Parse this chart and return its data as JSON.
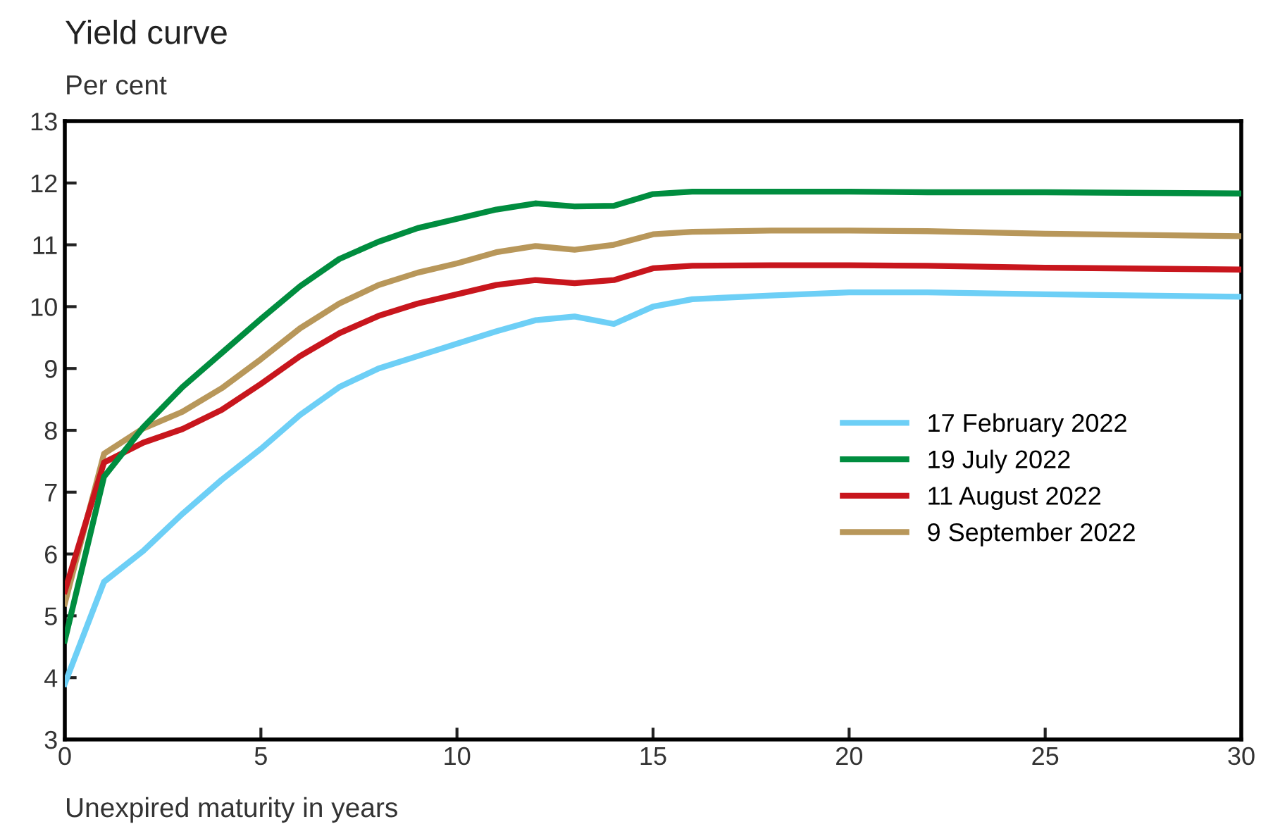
{
  "chart_data": {
    "type": "line",
    "title": "Yield curve",
    "ylabel": "Per cent",
    "xlabel": "Unexpired maturity in years",
    "x": [
      0,
      1,
      2,
      3,
      4,
      5,
      6,
      7,
      8,
      9,
      10,
      11,
      12,
      13,
      14,
      15,
      16,
      18,
      20,
      22,
      25,
      30
    ],
    "series": [
      {
        "name": "17 February 2022",
        "color": "#6dcff6",
        "values": [
          3.9,
          5.55,
          6.05,
          6.65,
          7.2,
          7.7,
          8.25,
          8.7,
          9.0,
          9.2,
          9.4,
          9.6,
          9.78,
          9.84,
          9.72,
          10.0,
          10.12,
          10.18,
          10.23,
          10.23,
          10.2,
          10.16
        ]
      },
      {
        "name": "19 July 2022",
        "color": "#008d3f",
        "values": [
          4.6,
          7.25,
          8.05,
          8.7,
          9.25,
          9.8,
          10.33,
          10.77,
          11.05,
          11.27,
          11.42,
          11.57,
          11.67,
          11.62,
          11.63,
          11.82,
          11.86,
          11.86,
          11.86,
          11.85,
          11.85,
          11.83
        ]
      },
      {
        "name": "11 August 2022",
        "color": "#c8161d",
        "values": [
          5.4,
          7.48,
          7.8,
          8.02,
          8.33,
          8.75,
          9.2,
          9.57,
          9.85,
          10.05,
          10.2,
          10.35,
          10.43,
          10.38,
          10.43,
          10.62,
          10.66,
          10.67,
          10.67,
          10.66,
          10.63,
          10.6
        ]
      },
      {
        "name": "9 September 2022",
        "color": "#b8975a",
        "values": [
          5.2,
          7.62,
          8.03,
          8.3,
          8.68,
          9.15,
          9.65,
          10.05,
          10.35,
          10.55,
          10.7,
          10.88,
          10.98,
          10.92,
          11.0,
          11.17,
          11.21,
          11.23,
          11.23,
          11.22,
          11.18,
          11.14
        ]
      }
    ],
    "xlim": [
      0,
      30
    ],
    "xticks": [
      0,
      5,
      10,
      15,
      20,
      25,
      30
    ],
    "ylim": [
      3,
      13
    ],
    "yticks": [
      3,
      4,
      5,
      6,
      7,
      8,
      9,
      10,
      11,
      12,
      13
    ],
    "grid": false,
    "legend": "right",
    "line_style": "solid",
    "marker": "none"
  }
}
